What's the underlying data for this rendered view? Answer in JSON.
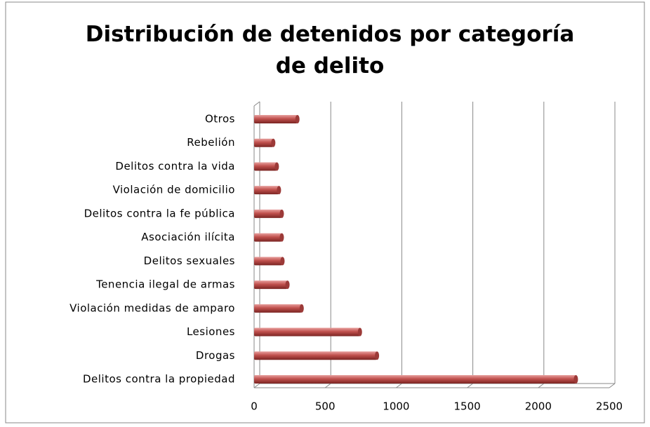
{
  "chart_data": {
    "type": "bar",
    "orientation": "horizontal",
    "title": "Distribución de detenidos por categoría de delito",
    "categories": [
      "Delitos contra la propiedad",
      "Drogas",
      "Lesiones",
      "Violación medidas de amparo",
      "Tenencia ilegal de armas",
      "Delitos sexuales",
      "Asociación ilícita",
      "Delitos contra la fe pública",
      "Violación de domicilio",
      "Delitos contra la vida",
      "Rebelión",
      "Otros"
    ],
    "values": [
      2265,
      865,
      745,
      335,
      235,
      200,
      195,
      195,
      175,
      160,
      135,
      305
    ],
    "color": "#c0504d",
    "xlim": [
      0,
      2500
    ],
    "xticks": [
      0,
      500,
      1000,
      1500,
      2000,
      2500
    ],
    "grid": true
  }
}
